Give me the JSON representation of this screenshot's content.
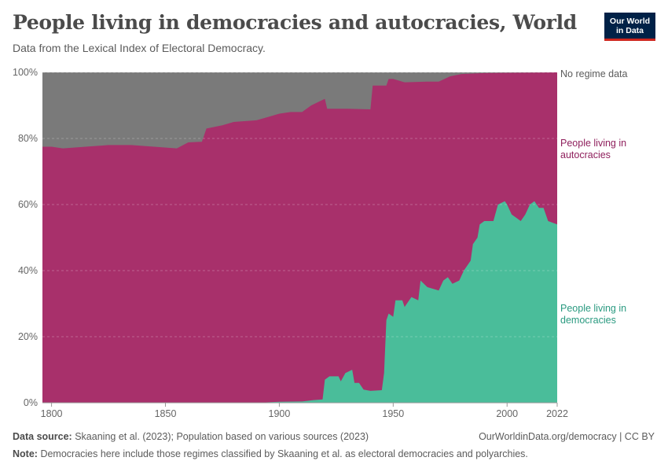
{
  "header": {
    "title": "People living in democracies and autocracies, World",
    "subtitle": "Data from the Lexical Index of Electoral Democracy."
  },
  "logo": {
    "line1": "Our World",
    "line2": "in Data",
    "bg_color": "#002147",
    "accent_color": "#ce261e"
  },
  "footer": {
    "source_label": "Data source:",
    "source_text": "Skaaning et al. (2023); Population based on various sources (2023)",
    "note_label": "Note:",
    "note_text": "Democracies here include those regimes classified by Skaaning et al. as electoral democracies and polyarchies.",
    "url_text": "OurWorldinData.org/democracy | CC BY"
  },
  "chart_data": {
    "type": "area",
    "stacked_percent": true,
    "x_ticks": [
      "1800",
      "1850",
      "1900",
      "1950",
      "2000",
      "2022"
    ],
    "y_ticks": [
      "0%",
      "20%",
      "40%",
      "60%",
      "80%",
      "100%"
    ],
    "xlim": [
      1796,
      2022
    ],
    "ylim": [
      0,
      100
    ],
    "grid": "horizontal dashed",
    "legend_placement": "right, inline labels",
    "series": [
      {
        "name": "People living in democracies",
        "label_lines": [
          "People living in",
          "democracies"
        ],
        "color": "#4abd9a",
        "label_color": "#2a9a80",
        "points": [
          [
            1796,
            0
          ],
          [
            1890,
            0
          ],
          [
            1900,
            0.3
          ],
          [
            1910,
            0.4
          ],
          [
            1915,
            0.8
          ],
          [
            1919,
            1
          ],
          [
            1920,
            7
          ],
          [
            1922,
            8
          ],
          [
            1926,
            8
          ],
          [
            1927,
            6.5
          ],
          [
            1929,
            9
          ],
          [
            1932,
            10
          ],
          [
            1933,
            6
          ],
          [
            1935,
            6
          ],
          [
            1937,
            4
          ],
          [
            1940,
            3.6
          ],
          [
            1945,
            3.8
          ],
          [
            1946,
            9
          ],
          [
            1947,
            25
          ],
          [
            1948,
            27
          ],
          [
            1950,
            26
          ],
          [
            1951,
            31
          ],
          [
            1954,
            31
          ],
          [
            1955,
            29
          ],
          [
            1958,
            32
          ],
          [
            1961,
            31
          ],
          [
            1962,
            37
          ],
          [
            1965,
            35
          ],
          [
            1970,
            34
          ],
          [
            1972,
            37
          ],
          [
            1974,
            38
          ],
          [
            1976,
            36
          ],
          [
            1979,
            37
          ],
          [
            1981,
            40
          ],
          [
            1984,
            43
          ],
          [
            1985,
            48
          ],
          [
            1987,
            50
          ],
          [
            1988,
            54
          ],
          [
            1990,
            55
          ],
          [
            1994,
            55
          ],
          [
            1996,
            60
          ],
          [
            1999,
            61
          ],
          [
            2000,
            60
          ],
          [
            2002,
            57
          ],
          [
            2004,
            56
          ],
          [
            2006,
            55
          ],
          [
            2008,
            57
          ],
          [
            2010,
            60
          ],
          [
            2012,
            61
          ],
          [
            2014,
            59
          ],
          [
            2016,
            59
          ],
          [
            2018,
            55
          ],
          [
            2020,
            54.5
          ],
          [
            2022,
            54
          ]
        ]
      },
      {
        "name": "People living in autocracies",
        "label_lines": [
          "People living in",
          "autocracies"
        ],
        "color": "#a8306b",
        "label_color": "#8f1f5c",
        "points": [
          [
            1796,
            77.5
          ],
          [
            1800,
            77.5
          ],
          [
            1805,
            77
          ],
          [
            1815,
            77.5
          ],
          [
            1825,
            78
          ],
          [
            1835,
            78
          ],
          [
            1845,
            77.5
          ],
          [
            1855,
            77
          ],
          [
            1860,
            78.8
          ],
          [
            1866,
            79
          ],
          [
            1868,
            83
          ],
          [
            1875,
            84
          ],
          [
            1880,
            85
          ],
          [
            1890,
            85.5
          ],
          [
            1895,
            86.5
          ],
          [
            1900,
            87.5
          ],
          [
            1905,
            88
          ],
          [
            1910,
            88
          ],
          [
            1914,
            90
          ],
          [
            1920,
            92
          ],
          [
            1921,
            89
          ],
          [
            1930,
            89
          ],
          [
            1940,
            88.8
          ],
          [
            1941,
            96
          ],
          [
            1947,
            96
          ],
          [
            1948,
            98
          ],
          [
            1950,
            98
          ],
          [
            1955,
            97
          ],
          [
            1965,
            97.2
          ],
          [
            1970,
            97.2
          ],
          [
            1975,
            98.8
          ],
          [
            1980,
            99.5
          ],
          [
            1990,
            99.8
          ],
          [
            2022,
            100
          ]
        ]
      },
      {
        "name": "No regime data",
        "label_lines": [
          "No regime data"
        ],
        "color": "#7a7a7a",
        "label_color": "#5b5b5b",
        "points": [
          [
            1796,
            100
          ],
          [
            2022,
            100
          ]
        ]
      }
    ]
  }
}
